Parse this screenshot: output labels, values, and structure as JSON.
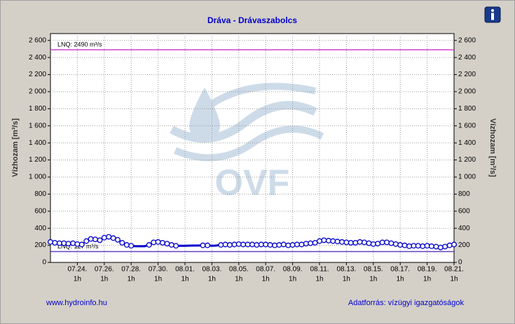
{
  "chart_data": {
    "type": "line",
    "title": "Dráva - Drávaszabolcs",
    "ylabel": "Vízhozam [m³/s]",
    "watermark": "OVF",
    "footer_left": "www.hydroinfo.hu",
    "footer_right": "Adatforrás: vízügyi igazgatóságok",
    "xlim": [
      -2,
      28
    ],
    "ylim": [
      0,
      2680
    ],
    "xticks": [
      {
        "value": 0,
        "label": "07.24."
      },
      {
        "value": 2,
        "label": "07.26."
      },
      {
        "value": 4,
        "label": "07.28."
      },
      {
        "value": 6,
        "label": "07.30."
      },
      {
        "value": 8,
        "label": "08.01."
      },
      {
        "value": 10,
        "label": "08.03."
      },
      {
        "value": 12,
        "label": "08.05."
      },
      {
        "value": 14,
        "label": "08.07."
      },
      {
        "value": 16,
        "label": "08.09."
      },
      {
        "value": 18,
        "label": "08.11."
      },
      {
        "value": 20,
        "label": "08.13."
      },
      {
        "value": 22,
        "label": "08.15."
      },
      {
        "value": 24,
        "label": "08.17."
      },
      {
        "value": 26,
        "label": "08.19."
      },
      {
        "value": 28,
        "label": "08.21."
      }
    ],
    "xtick_hours": [
      "1h",
      "1h",
      "1h",
      "1h",
      "1h",
      "1h",
      "1h",
      "1h",
      "1h",
      "1h",
      "1h",
      "1h",
      "1h",
      "1h",
      "1h"
    ],
    "yticks": [
      0,
      200,
      400,
      600,
      800,
      {
        "value": 1000,
        "label": "1 000"
      },
      {
        "value": 1200,
        "label": "1 200"
      },
      {
        "value": 1400,
        "label": "1 400"
      },
      {
        "value": 1600,
        "label": "1 600"
      },
      {
        "value": 1800,
        "label": "1 800"
      },
      {
        "value": 2000,
        "label": "2 000"
      },
      {
        "value": 2200,
        "label": "2 200"
      },
      {
        "value": 2400,
        "label": "2 400"
      },
      {
        "value": 2600,
        "label": "2 600"
      }
    ],
    "grid": true,
    "reference_lines": [
      {
        "value": 2490,
        "label": "LNQ: 2490  m³/s",
        "color": "#d040d0"
      },
      {
        "value": 127,
        "label": "LNQ: 127  m³/s",
        "color": "#6040c0"
      }
    ],
    "x": [
      -2,
      -1.67,
      -1.33,
      -1,
      -0.67,
      -0.33,
      0,
      0.33,
      0.67,
      1,
      1.33,
      1.67,
      2,
      2.33,
      2.67,
      3,
      3.33,
      3.67,
      4,
      4.33,
      4.67,
      5,
      5.33,
      5.67,
      6,
      6.33,
      6.67,
      7,
      7.33,
      7.67,
      8,
      8.33,
      8.67,
      9,
      9.33,
      9.67,
      10,
      10.33,
      10.67,
      11,
      11.33,
      11.67,
      12,
      12.33,
      12.67,
      13,
      13.33,
      13.67,
      14,
      14.33,
      14.67,
      15,
      15.33,
      15.67,
      16,
      16.33,
      16.67,
      17,
      17.33,
      17.67,
      18,
      18.33,
      18.67,
      19,
      19.33,
      19.67,
      20,
      20.33,
      20.67,
      21,
      21.33,
      21.67,
      22,
      22.33,
      22.67,
      23,
      23.33,
      23.67,
      24,
      24.33,
      24.67,
      25,
      25.33,
      25.67,
      26,
      26.33,
      26.67,
      27,
      27.33,
      27.67,
      28
    ],
    "series": [
      {
        "color": "#0000cc",
        "marker": true,
        "values": [
          240,
          230,
          225,
          225,
          220,
          225,
          215,
          210,
          250,
          275,
          270,
          260,
          290,
          300,
          285,
          265,
          230,
          205,
          195,
          null,
          null,
          null,
          205,
          235,
          240,
          230,
          220,
          205,
          195,
          null,
          null,
          null,
          null,
          null,
          200,
          200,
          null,
          null,
          205,
          210,
          205,
          210,
          215,
          210,
          210,
          210,
          205,
          210,
          210,
          205,
          200,
          205,
          210,
          200,
          205,
          210,
          210,
          220,
          225,
          230,
          250,
          260,
          255,
          250,
          245,
          240,
          235,
          230,
          230,
          240,
          235,
          225,
          215,
          220,
          235,
          235,
          225,
          215,
          205,
          200,
          190,
          195,
          195,
          190,
          195,
          190,
          185,
          175,
          185,
          200,
          210
        ]
      },
      {
        "color": "#0000cc",
        "marker": false,
        "values": [
          null,
          null,
          null,
          null,
          null,
          null,
          null,
          null,
          null,
          null,
          null,
          null,
          null,
          null,
          null,
          null,
          null,
          null,
          195,
          190,
          190,
          190,
          205,
          null,
          null,
          null,
          null,
          null,
          195,
          195,
          195,
          197,
          198,
          198,
          200,
          200,
          195,
          198,
          205,
          null,
          null,
          null,
          null,
          null,
          null,
          null,
          null,
          null,
          null,
          null,
          null,
          null,
          null,
          null,
          null,
          null,
          null,
          null,
          null,
          null,
          null,
          null,
          null,
          null,
          null,
          null,
          null,
          null,
          null,
          null,
          null,
          null,
          null,
          null,
          null,
          null,
          null,
          null,
          null,
          null,
          null,
          null,
          null,
          null,
          null,
          null,
          null,
          null,
          null,
          null,
          null
        ]
      }
    ]
  }
}
